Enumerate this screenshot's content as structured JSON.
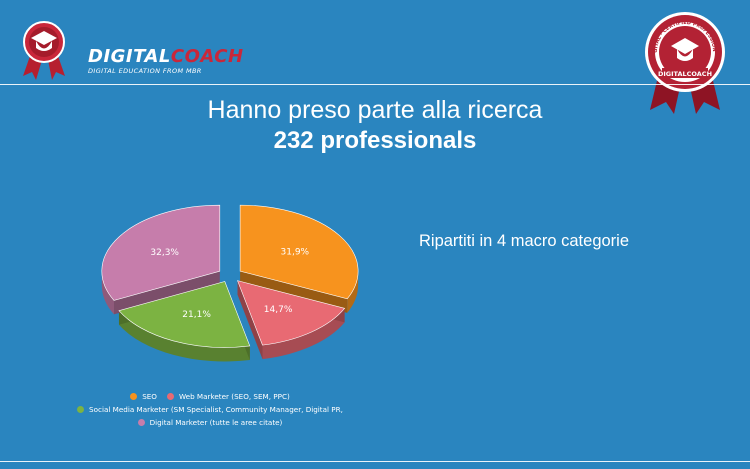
{
  "brand": {
    "name_white": "DIGITAL",
    "name_red": "COACH",
    "tagline": "DIGITAL EDUCATION FROM MBR",
    "seal_text_top": "DIGITAL · CERTIFIED PROFESSIONAL",
    "seal_text_bottom": "DIGITALCOACH"
  },
  "colors": {
    "background": "#2a85bf",
    "brand_red": "#c9273a"
  },
  "heading": {
    "title": "Hanno preso parte alla ricerca",
    "subtitle": "232 professionals"
  },
  "side_text": "Ripartiti in 4 macro categorie",
  "chart_data": {
    "type": "pie",
    "title": "",
    "slices": [
      {
        "label": "SEO",
        "value": 31.9,
        "display": "31,9%",
        "color": "#f7931e"
      },
      {
        "label": "Web Marketer (SEO, SEM, PPC)",
        "value": 14.7,
        "display": "14,7%",
        "color": "#e86a73"
      },
      {
        "label": "Social Media Marketer (SM Specialist, Community Manager, Digital PR,",
        "value": 21.1,
        "display": "21,1%",
        "color": "#7cb342"
      },
      {
        "label": "Digital Marketer (tutte le aree citate)",
        "value": 32.3,
        "display": "32,3%",
        "color": "#c67dab"
      }
    ],
    "exploded": true,
    "legend_position": "bottom"
  }
}
